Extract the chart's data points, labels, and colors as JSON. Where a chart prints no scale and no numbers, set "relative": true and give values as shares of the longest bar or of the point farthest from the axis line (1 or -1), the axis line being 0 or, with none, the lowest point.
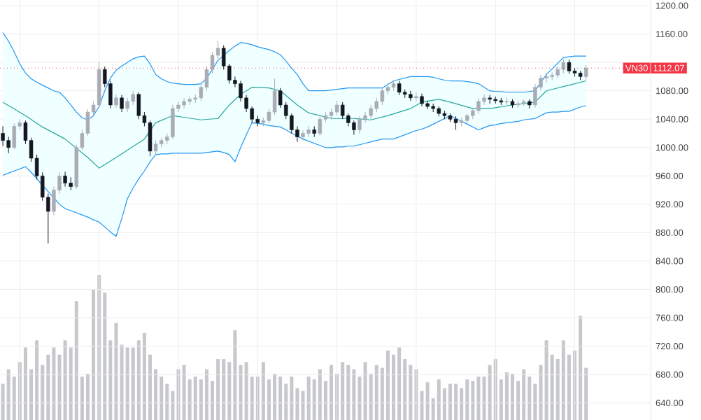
{
  "chart_data": [
    {
      "type": "candlestick",
      "categories": [
        null,
        null,
        null,
        null,
        null,
        null,
        null,
        null,
        null,
        null,
        null,
        null,
        null,
        null,
        null,
        null,
        null,
        null,
        null,
        null,
        null,
        null,
        null,
        null,
        null,
        null,
        null,
        null,
        null,
        null,
        null,
        null,
        null,
        null,
        null,
        null,
        null,
        null,
        null,
        null,
        null,
        null,
        null,
        null,
        null,
        null,
        null,
        null,
        null,
        null,
        null,
        null,
        null,
        null,
        null,
        null,
        null,
        null,
        null,
        null,
        null,
        null,
        null,
        null,
        null,
        null,
        null,
        null,
        null,
        null,
        null,
        null,
        null,
        null,
        null,
        null,
        null,
        null,
        null,
        null,
        null,
        null,
        null,
        null,
        null,
        null,
        null,
        null,
        null,
        null,
        null,
        null,
        null,
        null,
        null,
        null,
        null,
        null,
        null,
        null,
        null,
        null,
        null,
        null
      ],
      "ohlc": [
        [
          1020,
          1030,
          1002,
          1010
        ],
        [
          1010,
          1015,
          992,
          1000
        ],
        [
          1000,
          1034,
          998,
          1030
        ],
        [
          1030,
          1040,
          1025,
          1035
        ],
        [
          1035,
          1038,
          1005,
          1010
        ],
        [
          1010,
          1014,
          980,
          985
        ],
        [
          985,
          990,
          955,
          960
        ],
        [
          960,
          965,
          925,
          930
        ],
        [
          930,
          935,
          865,
          910
        ],
        [
          910,
          945,
          905,
          940
        ],
        [
          940,
          965,
          935,
          960
        ],
        [
          960,
          966,
          945,
          950
        ],
        [
          950,
          958,
          940,
          945
        ],
        [
          945,
          1004,
          942,
          1000
        ],
        [
          1000,
          1025,
          996,
          1020
        ],
        [
          1020,
          1054,
          1016,
          1050
        ],
        [
          1050,
          1065,
          1045,
          1060
        ],
        [
          1060,
          1120,
          1056,
          1110
        ],
        [
          1110,
          1114,
          1085,
          1090
        ],
        [
          1090,
          1094,
          1055,
          1060
        ],
        [
          1060,
          1075,
          1056,
          1070
        ],
        [
          1070,
          1074,
          1050,
          1055
        ],
        [
          1055,
          1070,
          1050,
          1065
        ],
        [
          1065,
          1080,
          1060,
          1075
        ],
        [
          1075,
          1078,
          1040,
          1045
        ],
        [
          1045,
          1050,
          1030,
          1035
        ],
        [
          1035,
          1038,
          988,
          995
        ],
        [
          995,
          1010,
          990,
          1005
        ],
        [
          1005,
          1014,
          1000,
          1010
        ],
        [
          1010,
          1020,
          1005,
          1015
        ],
        [
          1015,
          1060,
          1012,
          1055
        ],
        [
          1055,
          1065,
          1050,
          1060
        ],
        [
          1060,
          1070,
          1055,
          1065
        ],
        [
          1065,
          1072,
          1060,
          1068
        ],
        [
          1068,
          1075,
          1063,
          1070
        ],
        [
          1070,
          1090,
          1066,
          1085
        ],
        [
          1085,
          1115,
          1080,
          1110
        ],
        [
          1110,
          1135,
          1105,
          1130
        ],
        [
          1130,
          1150,
          1125,
          1140
        ],
        [
          1140,
          1144,
          1110,
          1115
        ],
        [
          1115,
          1118,
          1090,
          1095
        ],
        [
          1095,
          1100,
          1085,
          1090
        ],
        [
          1090,
          1094,
          1065,
          1070
        ],
        [
          1070,
          1074,
          1050,
          1055
        ],
        [
          1055,
          1058,
          1035,
          1040
        ],
        [
          1040,
          1045,
          1030,
          1035
        ],
        [
          1035,
          1042,
          1030,
          1038
        ],
        [
          1038,
          1055,
          1034,
          1050
        ],
        [
          1050,
          1097,
          1046,
          1080
        ],
        [
          1080,
          1084,
          1056,
          1060
        ],
        [
          1060,
          1064,
          1040,
          1045
        ],
        [
          1045,
          1048,
          1020,
          1025
        ],
        [
          1025,
          1030,
          1008,
          1015
        ],
        [
          1015,
          1024,
          1010,
          1020
        ],
        [
          1020,
          1030,
          1015,
          1025
        ],
        [
          1025,
          1030,
          1015,
          1020
        ],
        [
          1020,
          1044,
          1016,
          1040
        ],
        [
          1040,
          1050,
          1036,
          1045
        ],
        [
          1045,
          1055,
          1040,
          1050
        ],
        [
          1050,
          1066,
          1045,
          1060
        ],
        [
          1060,
          1064,
          1040,
          1045
        ],
        [
          1045,
          1048,
          1030,
          1035
        ],
        [
          1035,
          1038,
          1018,
          1025
        ],
        [
          1025,
          1044,
          1020,
          1040
        ],
        [
          1040,
          1050,
          1035,
          1045
        ],
        [
          1045,
          1060,
          1040,
          1055
        ],
        [
          1055,
          1070,
          1050,
          1065
        ],
        [
          1065,
          1084,
          1060,
          1080
        ],
        [
          1080,
          1090,
          1075,
          1085
        ],
        [
          1085,
          1095,
          1080,
          1090
        ],
        [
          1090,
          1094,
          1074,
          1078
        ],
        [
          1078,
          1082,
          1070,
          1075
        ],
        [
          1075,
          1080,
          1066,
          1070
        ],
        [
          1070,
          1078,
          1065,
          1072
        ],
        [
          1072,
          1076,
          1058,
          1062
        ],
        [
          1062,
          1066,
          1054,
          1058
        ],
        [
          1058,
          1062,
          1050,
          1055
        ],
        [
          1055,
          1058,
          1044,
          1048
        ],
        [
          1048,
          1052,
          1040,
          1045
        ],
        [
          1045,
          1048,
          1036,
          1040
        ],
        [
          1040,
          1044,
          1025,
          1035
        ],
        [
          1035,
          1042,
          1030,
          1038
        ],
        [
          1038,
          1048,
          1034,
          1045
        ],
        [
          1045,
          1056,
          1040,
          1052
        ],
        [
          1052,
          1070,
          1048,
          1065
        ],
        [
          1065,
          1075,
          1060,
          1070
        ],
        [
          1070,
          1074,
          1062,
          1068
        ],
        [
          1068,
          1072,
          1062,
          1066
        ],
        [
          1066,
          1070,
          1060,
          1064
        ],
        [
          1064,
          1070,
          1060,
          1065
        ],
        [
          1065,
          1068,
          1056,
          1060
        ],
        [
          1060,
          1066,
          1056,
          1062
        ],
        [
          1062,
          1068,
          1058,
          1065
        ],
        [
          1065,
          1068,
          1055,
          1060
        ],
        [
          1060,
          1090,
          1056,
          1085
        ],
        [
          1085,
          1102,
          1080,
          1098
        ],
        [
          1098,
          1105,
          1092,
          1100
        ],
        [
          1100,
          1106,
          1095,
          1102
        ],
        [
          1102,
          1115,
          1098,
          1110
        ],
        [
          1110,
          1125,
          1105,
          1120
        ],
        [
          1120,
          1124,
          1104,
          1108
        ],
        [
          1108,
          1112,
          1100,
          1105
        ],
        [
          1105,
          1108,
          1095,
          1100
        ],
        [
          1100,
          1116,
          1096,
          1112.07
        ]
      ],
      "colors": [
        "#131722",
        "#131722",
        "#a9acb5",
        "#a9acb5",
        "#131722",
        "#131722",
        "#131722",
        "#131722",
        "#131722",
        "#a9acb5",
        "#a9acb5",
        "#131722",
        "#131722",
        "#a9acb5",
        "#a9acb5",
        "#a9acb5",
        "#a9acb5",
        "#a9acb5",
        "#131722",
        "#131722",
        "#a9acb5",
        "#131722",
        "#a9acb5",
        "#a9acb5",
        "#131722",
        "#131722",
        "#131722",
        "#a9acb5",
        "#a9acb5",
        "#a9acb5",
        "#a9acb5",
        "#a9acb5",
        "#a9acb5",
        "#a9acb5",
        "#a9acb5",
        "#a9acb5",
        "#a9acb5",
        "#a9acb5",
        "#a9acb5",
        "#131722",
        "#131722",
        "#131722",
        "#131722",
        "#131722",
        "#131722",
        "#131722",
        "#a9acb5",
        "#a9acb5",
        "#a9acb5",
        "#131722",
        "#131722",
        "#131722",
        "#131722",
        "#a9acb5",
        "#a9acb5",
        "#131722",
        "#a9acb5",
        "#a9acb5",
        "#a9acb5",
        "#a9acb5",
        "#131722",
        "#131722",
        "#131722",
        "#a9acb5",
        "#a9acb5",
        "#a9acb5",
        "#a9acb5",
        "#a9acb5",
        "#a9acb5",
        "#a9acb5",
        "#131722",
        "#131722",
        "#131722",
        "#a9acb5",
        "#131722",
        "#131722",
        "#131722",
        "#131722",
        "#131722",
        "#131722",
        "#131722",
        "#a9acb5",
        "#a9acb5",
        "#a9acb5",
        "#a9acb5",
        "#a9acb5",
        "#131722",
        "#131722",
        "#131722",
        "#a9acb5",
        "#131722",
        "#a9acb5",
        "#a9acb5",
        "#131722",
        "#a9acb5",
        "#a9acb5",
        "#a9acb5",
        "#a9acb5",
        "#a9acb5",
        "#a9acb5",
        "#131722",
        "#131722",
        "#131722",
        "#a9acb5"
      ],
      "series": [
        {
          "type": "line",
          "color": "#2196f3",
          "values": [
            1162,
            1150,
            1135,
            1118,
            1105,
            1097,
            1092,
            1088,
            1084,
            1080,
            1078,
            1070,
            1060,
            1050,
            1042,
            1039,
            1045,
            1058,
            1080,
            1098,
            1109,
            1115,
            1120,
            1125,
            1128,
            1129,
            1118,
            1103,
            1097,
            1093,
            1091,
            1090,
            1089,
            1089,
            1089,
            1090,
            1098,
            1110,
            1123,
            1130,
            1137,
            1143,
            1148,
            1147,
            1145,
            1142,
            1140,
            1138,
            1135,
            1131,
            1122,
            1112,
            1103,
            1090,
            1080,
            1080,
            1080,
            1080,
            1081,
            1082,
            1083,
            1084,
            1084,
            1084,
            1084,
            1084,
            1084,
            1084,
            1089,
            1094,
            1096,
            1098,
            1100,
            1100,
            1100,
            1100,
            1099,
            1097,
            1095,
            1094,
            1094,
            1094,
            1093,
            1092,
            1090,
            1085,
            1080,
            1079,
            1079,
            1078,
            1078,
            1078,
            1078,
            1079,
            1080,
            1092,
            1103,
            1111,
            1119,
            1127,
            1128,
            1129,
            1129,
            1129
          ]
        },
        {
          "type": "line",
          "color": "#26a69a",
          "upper": [
            1162,
            1150,
            1135,
            1118,
            1105,
            1097,
            1092,
            1088,
            1084,
            1080,
            1078,
            1070,
            1060,
            1050,
            1042,
            1039,
            1045,
            1058,
            1080,
            1098,
            1109,
            1115,
            1120,
            1125,
            1128,
            1129,
            1118,
            1103,
            1097,
            1093,
            1091,
            1090,
            1089,
            1089,
            1089,
            1090,
            1098,
            1110,
            1123,
            1130,
            1137,
            1143,
            1148,
            1147,
            1145,
            1142,
            1140,
            1138,
            1135,
            1131,
            1122,
            1112,
            1103,
            1090,
            1080,
            1080,
            1080,
            1080,
            1081,
            1082,
            1083,
            1084,
            1084,
            1084,
            1084,
            1084,
            1084,
            1084,
            1089,
            1094,
            1096,
            1098,
            1100,
            1100,
            1100,
            1100,
            1099,
            1097,
            1095,
            1094,
            1094,
            1094,
            1093,
            1092,
            1090,
            1085,
            1080,
            1079,
            1079,
            1078,
            1078,
            1078,
            1078,
            1079,
            1080,
            1092,
            1103,
            1111,
            1119,
            1127,
            1128,
            1129,
            1129,
            1129
          ],
          "lower": [
            961,
            964,
            967,
            970,
            973,
            965,
            956,
            947,
            938,
            929,
            920,
            914,
            911,
            908,
            905,
            902,
            898,
            895,
            888,
            881,
            875,
            900,
            928,
            943,
            956,
            967,
            980,
            990,
            991,
            991,
            992,
            992,
            992,
            992,
            992,
            992,
            993,
            994,
            995,
            993,
            990,
            980,
            1000,
            1018,
            1035,
            1034,
            1033,
            1031,
            1030,
            1029,
            1025,
            1020,
            1016,
            1012,
            1009,
            1006,
            1003,
            1000,
            1000,
            1001,
            1001,
            1002,
            1002,
            1004,
            1006,
            1008,
            1010,
            1012,
            1012,
            1012,
            1015,
            1018,
            1021,
            1024,
            1026,
            1029,
            1033,
            1037,
            1041,
            1045,
            1041,
            1037,
            1033,
            1029,
            1025,
            1028,
            1031,
            1032,
            1034,
            1035,
            1036,
            1037,
            1039,
            1040,
            1041,
            1045,
            1049,
            1050,
            1050,
            1051,
            1051,
            1054,
            1057,
            1059
          ],
          "values": [
            1064,
            null,
            null,
            null,
            1045,
            null,
            null,
            1029,
            null,
            null,
            null,
            1012,
            null,
            null,
            null,
            986,
            null,
            971,
            null,
            null,
            986,
            null,
            null,
            null,
            null,
            1012,
            null,
            1035,
            null,
            null,
            1045,
            null,
            null,
            null,
            null,
            1039,
            null,
            null,
            1041,
            null,
            1060,
            null,
            1075,
            null,
            1085,
            null,
            null,
            1084,
            null,
            1080,
            null,
            null,
            1060,
            null,
            1049,
            null,
            null,
            null,
            1041,
            null,
            null,
            null,
            1041,
            null,
            null,
            1039,
            null,
            null,
            1045,
            null,
            null,
            null,
            1055,
            null,
            1064,
            null,
            null,
            1068,
            null,
            1064,
            null,
            null,
            null,
            1055,
            null,
            null,
            1055,
            null,
            null,
            null,
            1060,
            null,
            null,
            null,
            1064,
            null,
            1080,
            null,
            null,
            null,
            1088,
            null,
            null,
            1094
          ]
        },
        {
          "type": "line",
          "color": "#2196f3",
          "values": [
            961,
            964,
            967,
            970,
            973,
            965,
            956,
            947,
            938,
            929,
            920,
            914,
            911,
            908,
            905,
            902,
            898,
            895,
            888,
            881,
            875,
            900,
            928,
            943,
            956,
            967,
            980,
            990,
            991,
            991,
            992,
            992,
            992,
            992,
            992,
            992,
            993,
            994,
            995,
            993,
            990,
            980,
            1000,
            1018,
            1035,
            1034,
            1033,
            1031,
            1030,
            1029,
            1025,
            1020,
            1016,
            1012,
            1009,
            1006,
            1003,
            1000,
            1000,
            1001,
            1001,
            1002,
            1002,
            1004,
            1006,
            1008,
            1010,
            1012,
            1012,
            1012,
            1015,
            1018,
            1021,
            1024,
            1026,
            1029,
            1033,
            1037,
            1041,
            1045,
            1041,
            1037,
            1033,
            1029,
            1025,
            1028,
            1031,
            1032,
            1034,
            1035,
            1036,
            1037,
            1039,
            1040,
            1041,
            1045,
            1049,
            1050,
            1050,
            1051,
            1051,
            1054,
            1057,
            1059
          ]
        }
      ],
      "ylim": [
        616,
        1208
      ],
      "yticks": [
        {
          "value": 640,
          "label": "640.00"
        },
        {
          "value": 680,
          "label": "680.00"
        },
        {
          "value": 720,
          "label": "720.00"
        },
        {
          "value": 760,
          "label": "760.00"
        },
        {
          "value": 800,
          "label": "800.00"
        },
        {
          "value": 840,
          "label": "840.00"
        },
        {
          "value": 880,
          "label": "880.00"
        },
        {
          "value": 920,
          "label": "920.00"
        },
        {
          "value": 960,
          "label": "960.00"
        },
        {
          "value": 1000,
          "label": "1000.00"
        },
        {
          "value": 1040,
          "label": "1040.00"
        },
        {
          "value": 1080,
          "label": "1080.00"
        },
        {
          "value": 1120,
          "label": null
        },
        {
          "value": 1160,
          "label": "1160.00"
        },
        {
          "value": 1200,
          "label": "1200.00"
        }
      ],
      "grid": true,
      "tick_labels": "y",
      "ref_lines": [
        {
          "axis": "y",
          "value": 1112.07,
          "label": "VN30",
          "color": "#f23645",
          "line_style": "dotted"
        }
      ],
      "annotations": [
        "1112.07"
      ]
    },
    {
      "type": "bar",
      "relative": true,
      "color": "#c7c8cc",
      "categories": [
        null,
        null,
        null,
        null,
        null,
        null,
        null,
        null,
        null,
        null,
        null,
        null,
        null,
        null,
        null,
        null,
        null,
        null,
        null,
        null,
        null,
        null,
        null,
        null,
        null,
        null,
        null,
        null,
        null,
        null,
        null,
        null,
        null,
        null,
        null,
        null,
        null,
        null,
        null,
        null,
        null,
        null,
        null,
        null,
        null,
        null,
        null,
        null,
        null,
        null,
        null,
        null,
        null,
        null,
        null,
        null,
        null,
        null,
        null,
        null,
        null,
        null,
        null,
        null,
        null,
        null,
        null,
        null,
        null,
        null,
        null,
        null,
        null,
        null,
        null,
        null,
        null,
        null,
        null,
        null,
        null,
        null,
        null,
        null,
        null,
        null,
        null,
        null,
        null,
        null,
        null,
        null,
        null,
        null,
        null,
        null,
        null,
        null,
        null,
        null,
        null,
        null,
        null,
        null
      ],
      "values": [
        0.25,
        0.35,
        0.3,
        0.4,
        0.5,
        0.35,
        0.55,
        0.38,
        0.45,
        0.5,
        0.45,
        0.55,
        0.5,
        0.82,
        0.3,
        0.32,
        0.9,
        1.0,
        0.88,
        0.55,
        0.67,
        0.52,
        0.5,
        0.5,
        0.55,
        0.6,
        0.45,
        0.35,
        0.3,
        0.25,
        0.2,
        0.35,
        0.38,
        0.28,
        0.3,
        0.28,
        0.35,
        0.27,
        0.42,
        0.42,
        0.4,
        0.62,
        0.38,
        0.4,
        0.3,
        0.3,
        0.4,
        0.28,
        0.32,
        0.3,
        0.25,
        0.3,
        0.22,
        0.2,
        0.3,
        0.28,
        0.35,
        0.27,
        0.38,
        0.32,
        0.4,
        0.38,
        0.35,
        0.3,
        0.4,
        0.32,
        0.38,
        0.36,
        0.48,
        0.45,
        0.5,
        0.42,
        0.38,
        0.35,
        0.2,
        0.26,
        0.15,
        0.28,
        0.22,
        0.25,
        0.25,
        0.22,
        0.28,
        0.27,
        0.3,
        0.3,
        0.38,
        0.42,
        0.28,
        0.33,
        0.32,
        0.27,
        0.35,
        0.3,
        0.25,
        0.38,
        0.55,
        0.45,
        0.42,
        0.55,
        0.45,
        0.48,
        0.72,
        0.36
      ]
    }
  ]
}
